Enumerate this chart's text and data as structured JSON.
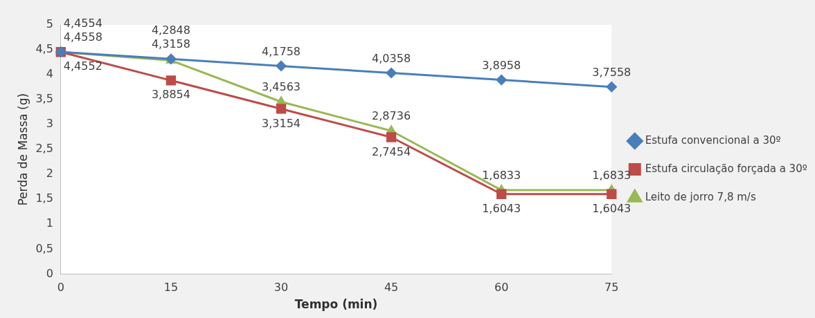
{
  "chart_data": {
    "type": "line",
    "xlabel": "Tempo (min)",
    "ylabel": "Perda de Massa (g)",
    "categories": [
      "0",
      "15",
      "30",
      "45",
      "60",
      "75"
    ],
    "ylim": [
      0,
      5
    ],
    "yticks": [
      0,
      {
        "value": 0.5,
        "label": "0,5"
      },
      1,
      {
        "value": 1.5,
        "label": "1,5"
      },
      2,
      {
        "value": 2.5,
        "label": "2,5"
      },
      3,
      {
        "value": 3.5,
        "label": "3,5"
      },
      4,
      {
        "value": 4.5,
        "label": "4,5"
      },
      5
    ],
    "grid": false,
    "legend": "right",
    "line_style": "solid",
    "series": [
      {
        "name": "Estufa convencional a 30º",
        "color": "#4a7ebb",
        "marker": "diamond",
        "values": [
          4.4558,
          4.3158,
          4.1758,
          4.0358,
          3.8958,
          3.7558
        ],
        "value_labels": [
          "4,4558",
          "4,3158",
          "4,1758",
          "4,0358",
          "3,8958",
          "3,7558"
        ]
      },
      {
        "name": "Estufa circulação forçada a 30º",
        "color": "#be4b48",
        "marker": "square",
        "values": [
          4.4554,
          3.8854,
          3.3154,
          2.7454,
          1.6043,
          1.6043
        ],
        "value_labels": [
          "4,4554",
          "3,8854",
          "3,3154",
          "2,7454",
          "1,6043",
          "1,6043"
        ]
      },
      {
        "name": "Leito de jorro 7,8 m/s",
        "color": "#98b954",
        "marker": "triangle",
        "values": [
          4.4552,
          4.2848,
          3.4563,
          2.8736,
          1.6833,
          1.6833
        ],
        "value_labels": [
          "4,4552",
          "4,2848",
          "3,4563",
          "2,8736",
          "1,6833",
          "1,6833"
        ]
      }
    ]
  }
}
